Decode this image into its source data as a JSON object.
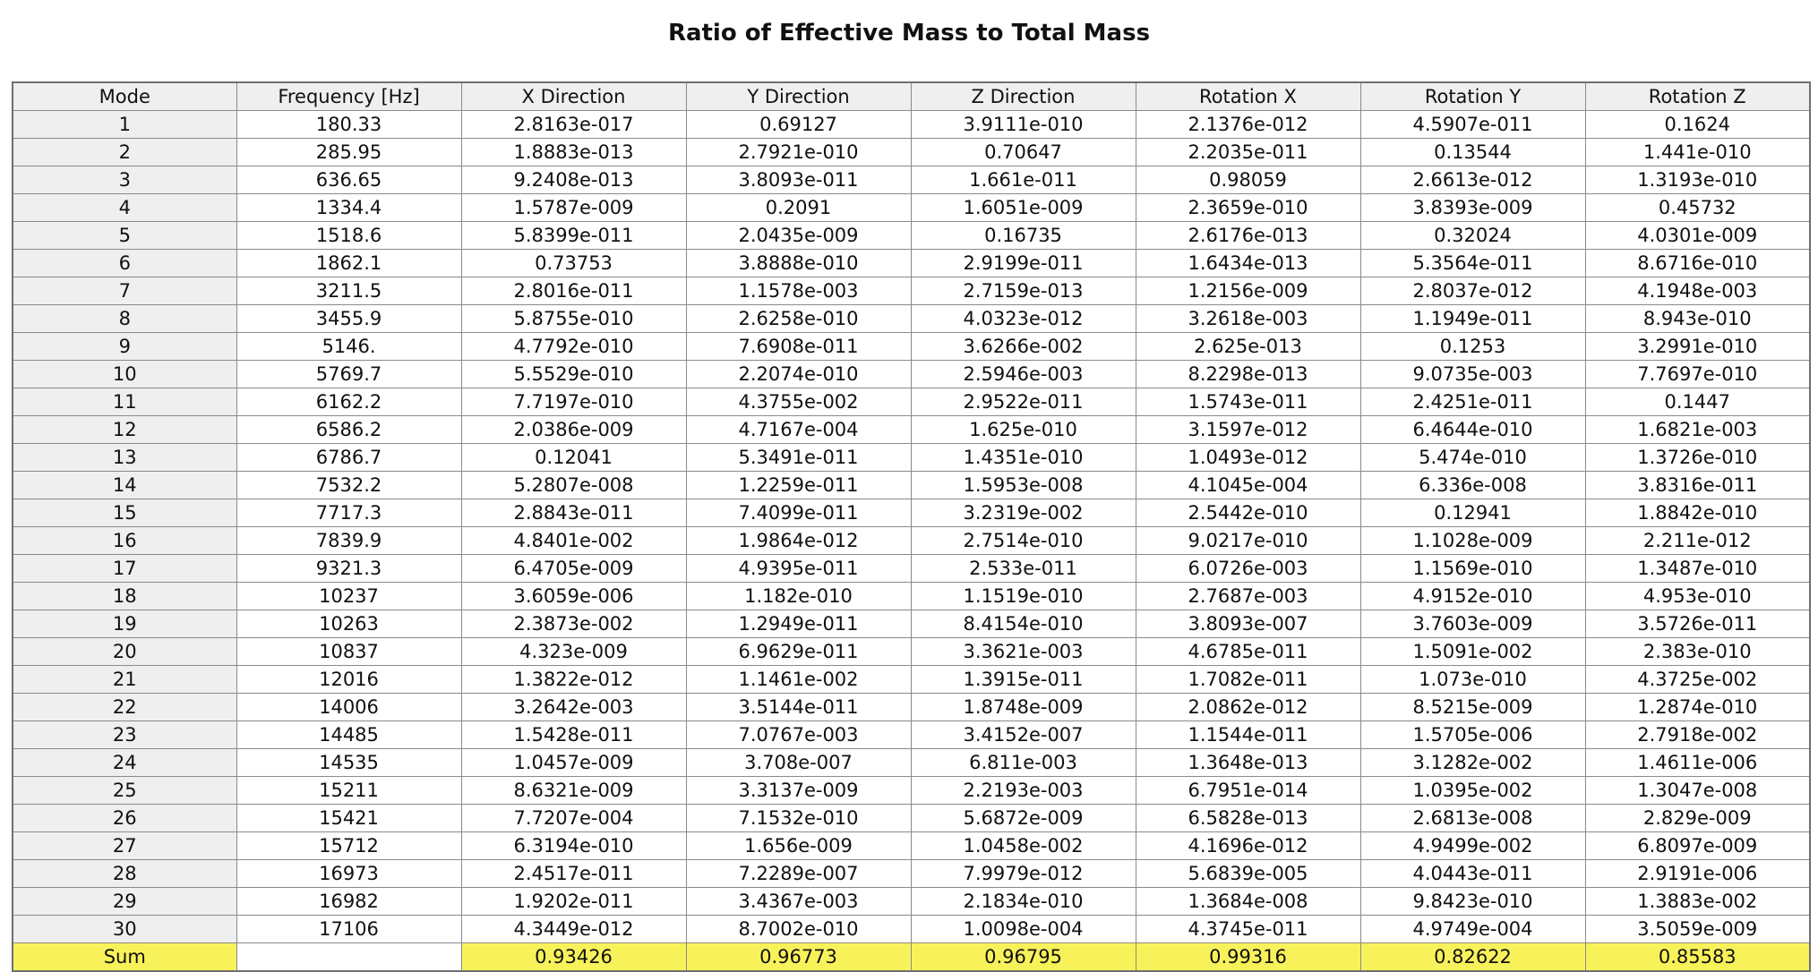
{
  "title": "Ratio of Effective Mass to Total Mass",
  "colors": {
    "header_bg": "#efefef",
    "sum_bg": "#f8f25a",
    "grid_line": "#8a8a8a"
  },
  "columns": [
    "Mode",
    "Frequency [Hz]",
    "X Direction",
    "Y Direction",
    "Z Direction",
    "Rotation X",
    "Rotation Y",
    "Rotation Z"
  ],
  "rows": [
    [
      "1",
      "180.33",
      "2.8163e-017",
      "0.69127",
      "3.9111e-010",
      "2.1376e-012",
      "4.5907e-011",
      "0.1624"
    ],
    [
      "2",
      "285.95",
      "1.8883e-013",
      "2.7921e-010",
      "0.70647",
      "2.2035e-011",
      "0.13544",
      "1.441e-010"
    ],
    [
      "3",
      "636.65",
      "9.2408e-013",
      "3.8093e-011",
      "1.661e-011",
      "0.98059",
      "2.6613e-012",
      "1.3193e-010"
    ],
    [
      "4",
      "1334.4",
      "1.5787e-009",
      "0.2091",
      "1.6051e-009",
      "2.3659e-010",
      "3.8393e-009",
      "0.45732"
    ],
    [
      "5",
      "1518.6",
      "5.8399e-011",
      "2.0435e-009",
      "0.16735",
      "2.6176e-013",
      "0.32024",
      "4.0301e-009"
    ],
    [
      "6",
      "1862.1",
      "0.73753",
      "3.8888e-010",
      "2.9199e-011",
      "1.6434e-013",
      "5.3564e-011",
      "8.6716e-010"
    ],
    [
      "7",
      "3211.5",
      "2.8016e-011",
      "1.1578e-003",
      "2.7159e-013",
      "1.2156e-009",
      "2.8037e-012",
      "4.1948e-003"
    ],
    [
      "8",
      "3455.9",
      "5.8755e-010",
      "2.6258e-010",
      "4.0323e-012",
      "3.2618e-003",
      "1.1949e-011",
      "8.943e-010"
    ],
    [
      "9",
      "5146.",
      "4.7792e-010",
      "7.6908e-011",
      "3.6266e-002",
      "2.625e-013",
      "0.1253",
      "3.2991e-010"
    ],
    [
      "10",
      "5769.7",
      "5.5529e-010",
      "2.2074e-010",
      "2.5946e-003",
      "8.2298e-013",
      "9.0735e-003",
      "7.7697e-010"
    ],
    [
      "11",
      "6162.2",
      "7.7197e-010",
      "4.3755e-002",
      "2.9522e-011",
      "1.5743e-011",
      "2.4251e-011",
      "0.1447"
    ],
    [
      "12",
      "6586.2",
      "2.0386e-009",
      "4.7167e-004",
      "1.625e-010",
      "3.1597e-012",
      "6.4644e-010",
      "1.6821e-003"
    ],
    [
      "13",
      "6786.7",
      "0.12041",
      "5.3491e-011",
      "1.4351e-010",
      "1.0493e-012",
      "5.474e-010",
      "1.3726e-010"
    ],
    [
      "14",
      "7532.2",
      "5.2807e-008",
      "1.2259e-011",
      "1.5953e-008",
      "4.1045e-004",
      "6.336e-008",
      "3.8316e-011"
    ],
    [
      "15",
      "7717.3",
      "2.8843e-011",
      "7.4099e-011",
      "3.2319e-002",
      "2.5442e-010",
      "0.12941",
      "1.8842e-010"
    ],
    [
      "16",
      "7839.9",
      "4.8401e-002",
      "1.9864e-012",
      "2.7514e-010",
      "9.0217e-010",
      "1.1028e-009",
      "2.211e-012"
    ],
    [
      "17",
      "9321.3",
      "6.4705e-009",
      "4.9395e-011",
      "2.533e-011",
      "6.0726e-003",
      "1.1569e-010",
      "1.3487e-010"
    ],
    [
      "18",
      "10237",
      "3.6059e-006",
      "1.182e-010",
      "1.1519e-010",
      "2.7687e-003",
      "4.9152e-010",
      "4.953e-010"
    ],
    [
      "19",
      "10263",
      "2.3873e-002",
      "1.2949e-011",
      "8.4154e-010",
      "3.8093e-007",
      "3.7603e-009",
      "3.5726e-011"
    ],
    [
      "20",
      "10837",
      "4.323e-009",
      "6.9629e-011",
      "3.3621e-003",
      "4.6785e-011",
      "1.5091e-002",
      "2.383e-010"
    ],
    [
      "21",
      "12016",
      "1.3822e-012",
      "1.1461e-002",
      "1.3915e-011",
      "1.7082e-011",
      "1.073e-010",
      "4.3725e-002"
    ],
    [
      "22",
      "14006",
      "3.2642e-003",
      "3.5144e-011",
      "1.8748e-009",
      "2.0862e-012",
      "8.5215e-009",
      "1.2874e-010"
    ],
    [
      "23",
      "14485",
      "1.5428e-011",
      "7.0767e-003",
      "3.4152e-007",
      "1.1544e-011",
      "1.5705e-006",
      "2.7918e-002"
    ],
    [
      "24",
      "14535",
      "1.0457e-009",
      "3.708e-007",
      "6.811e-003",
      "1.3648e-013",
      "3.1282e-002",
      "1.4611e-006"
    ],
    [
      "25",
      "15211",
      "8.6321e-009",
      "3.3137e-009",
      "2.2193e-003",
      "6.7951e-014",
      "1.0395e-002",
      "1.3047e-008"
    ],
    [
      "26",
      "15421",
      "7.7207e-004",
      "7.1532e-010",
      "5.6872e-009",
      "6.5828e-013",
      "2.6813e-008",
      "2.829e-009"
    ],
    [
      "27",
      "15712",
      "6.3194e-010",
      "1.656e-009",
      "1.0458e-002",
      "4.1696e-012",
      "4.9499e-002",
      "6.8097e-009"
    ],
    [
      "28",
      "16973",
      "2.4517e-011",
      "7.2289e-007",
      "7.9979e-012",
      "5.6839e-005",
      "4.0443e-011",
      "2.9191e-006"
    ],
    [
      "29",
      "16982",
      "1.9202e-011",
      "3.4367e-003",
      "2.1834e-010",
      "1.3684e-008",
      "9.8423e-010",
      "1.3883e-002"
    ],
    [
      "30",
      "17106",
      "4.3449e-012",
      "8.7002e-010",
      "1.0098e-004",
      "4.3745e-011",
      "4.9749e-004",
      "3.5059e-009"
    ]
  ],
  "sum_row": [
    "Sum",
    "",
    "0.93426",
    "0.96773",
    "0.96795",
    "0.99316",
    "0.82622",
    "0.85583"
  ]
}
